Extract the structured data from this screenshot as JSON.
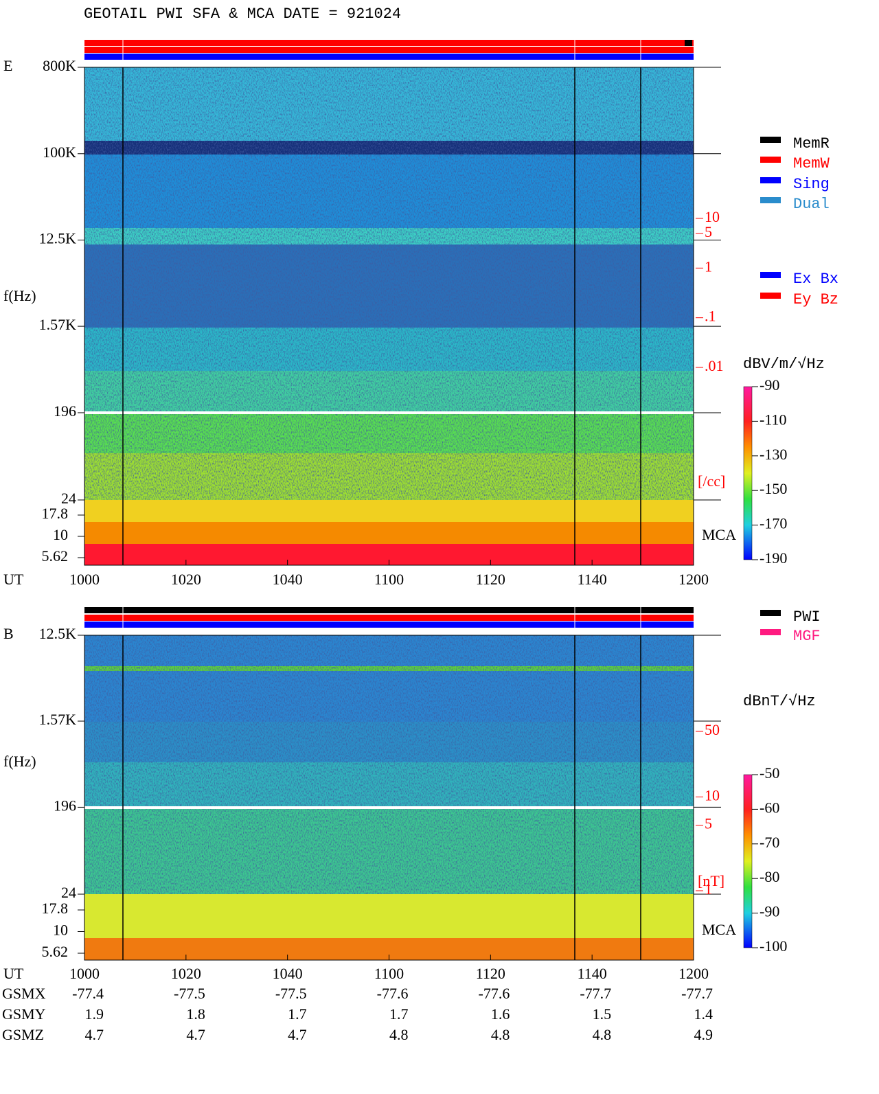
{
  "title": "GEOTAIL  PWI SFA & MCA   DATE = 921024",
  "mode_legend": [
    {
      "name": "MemR",
      "color": "#000000"
    },
    {
      "name": "MemW",
      "color": "#ff0000"
    },
    {
      "name": "Sing",
      "color": "#0000ff"
    },
    {
      "name": "Dual",
      "color": "#2a8ccc"
    }
  ],
  "component_legend": [
    {
      "name": "Ex Bx",
      "color": "#0000ff"
    },
    {
      "name": "Ey Bz",
      "color": "#ff0000"
    }
  ],
  "instrument_legend": [
    {
      "name": "PWI",
      "color": "#000000"
    },
    {
      "name": "MGF",
      "color": "#ff1a80"
    }
  ],
  "chart_data": [
    {
      "type": "spectrogram",
      "panel": "E",
      "y_label": "f(Hz)",
      "x_label": "UT",
      "x_categories": [
        "1000",
        "1020",
        "1040",
        "1100",
        "1120",
        "1140",
        "1200"
      ],
      "ylim": [
        24,
        800000
      ],
      "log": true,
      "yticks": [
        {
          "value": 800000,
          "label": "800K"
        },
        {
          "value": 100000,
          "label": "100K"
        },
        {
          "value": 12500,
          "label": "12.5K"
        },
        {
          "value": 1570,
          "label": "1.57K"
        },
        196,
        24
      ],
      "mca_ticks": [
        17.8,
        10,
        5.62
      ],
      "mca_label": "MCA",
      "right_axis": {
        "label": "[/cc]",
        "log": true,
        "lim": [
          0.01,
          10
        ],
        "ticks": [
          10,
          5,
          1,
          {
            "value": 0.1,
            "label": ".1"
          },
          {
            "value": 0.01,
            "label": ".01"
          }
        ]
      },
      "colorbar": {
        "label": "dBV/m/√Hz",
        "lim": [
          -190,
          -90
        ],
        "ticks": [
          -90,
          -110,
          -130,
          -150,
          -170,
          -190
        ]
      }
    },
    {
      "type": "spectrogram",
      "panel": "B",
      "y_label": "f(Hz)",
      "x_label": "UT",
      "x_categories": [
        "1000",
        "1020",
        "1040",
        "1100",
        "1120",
        "1140",
        "1200"
      ],
      "ylim": [
        24,
        12500
      ],
      "log": true,
      "yticks": [
        {
          "value": 12500,
          "label": "12.5K"
        },
        {
          "value": 1570,
          "label": "1.57K"
        },
        196,
        24
      ],
      "mca_ticks": [
        17.8,
        10,
        5.62
      ],
      "mca_label": "MCA",
      "right_axis": {
        "label": "[nT]",
        "log": true,
        "lim": [
          1,
          50
        ],
        "ticks": [
          50,
          10,
          5,
          1
        ]
      },
      "colorbar": {
        "label": "dBnT/√Hz",
        "lim": [
          -100,
          -50
        ],
        "ticks": [
          -50,
          -60,
          -70,
          -80,
          -90,
          -100
        ]
      }
    }
  ],
  "orbit": {
    "rows": [
      {
        "name": "GSMX",
        "values": [
          -77.4,
          -77.5,
          -77.5,
          -77.6,
          -77.6,
          -77.7,
          -77.7
        ]
      },
      {
        "name": "GSMY",
        "values": [
          1.9,
          1.8,
          1.7,
          1.7,
          1.6,
          1.5,
          1.4
        ]
      },
      {
        "name": "GSMZ",
        "values": [
          4.7,
          4.7,
          4.7,
          4.8,
          4.8,
          4.8,
          4.9
        ]
      }
    ]
  }
}
